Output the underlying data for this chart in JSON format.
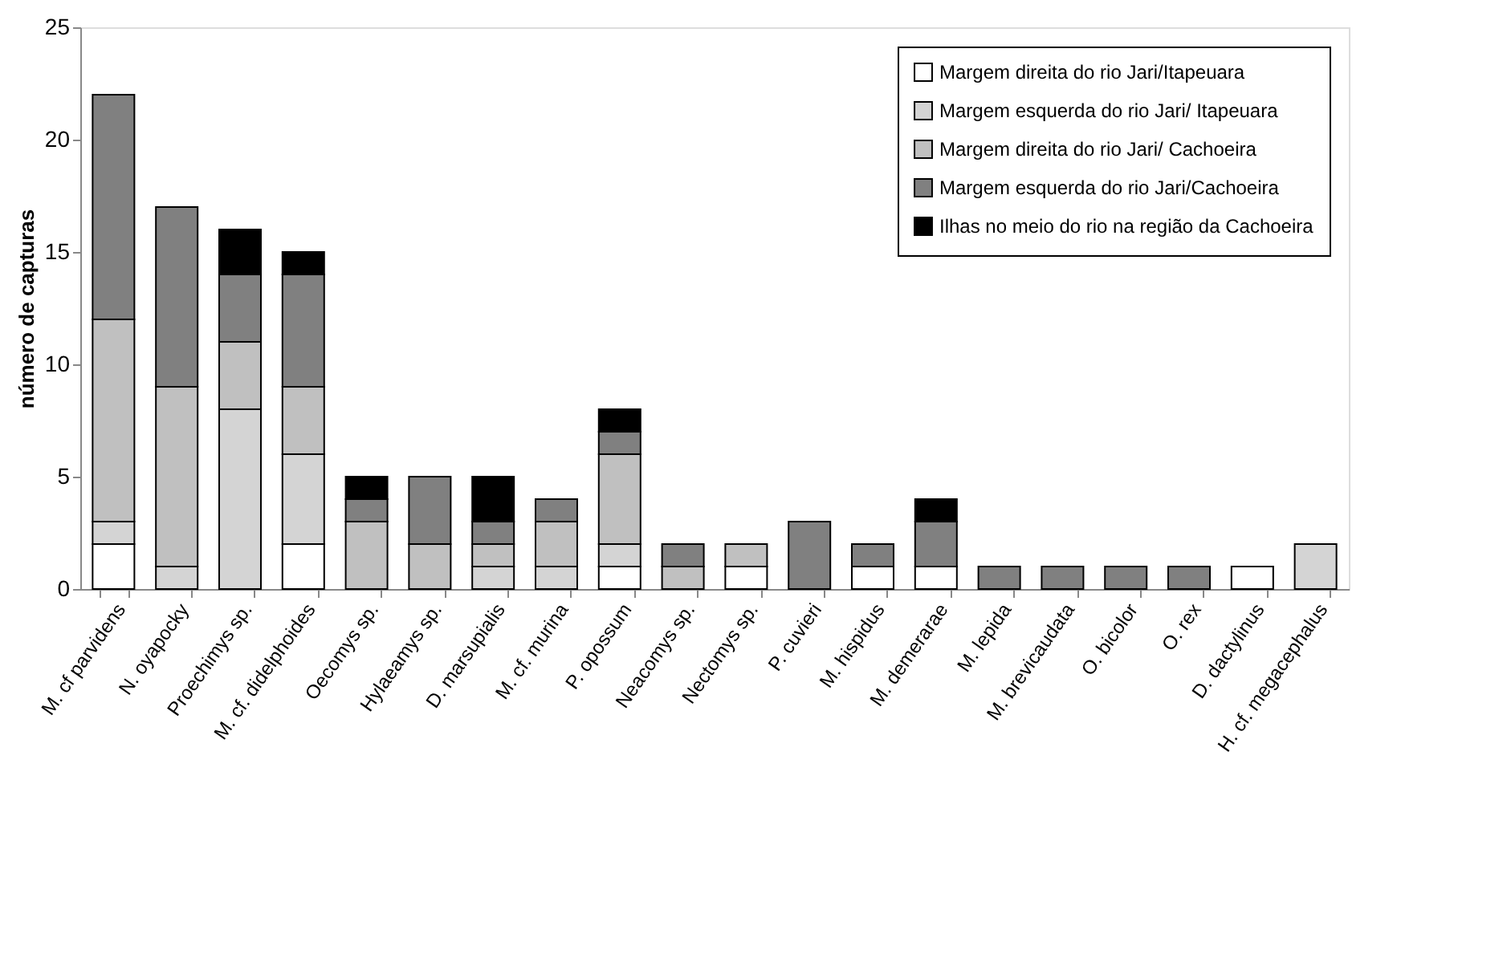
{
  "chart_data": {
    "type": "bar",
    "stacked": true,
    "ylabel": "número de capturas",
    "categories": [
      "M. cf parvidens",
      "N. oyapocky",
      "Proechimys sp.",
      "M. cf. didelphoides",
      "Oecomys sp.",
      "Hylaeamys sp.",
      "D. marsupialis",
      "M. cf. murina",
      "P. opossum",
      "Neacomys sp.",
      "Nectomys sp.",
      "P. cuvieri",
      "M. hispidus",
      "M. demerarae",
      "M. lepida",
      "M. brevicaudata",
      "O. bicolor",
      "O. rex",
      "D. dactylinus",
      "H. cf. megacephalus"
    ],
    "series": [
      {
        "name": "Margem direita do rio Jari/Itapeuara",
        "color": "#ffffff",
        "values": [
          2,
          0,
          0,
          2,
          0,
          0,
          0,
          0,
          1,
          0,
          1,
          0,
          1,
          1,
          0,
          0,
          0,
          0,
          1,
          0
        ]
      },
      {
        "name": "Margem esquerda do rio Jari/ Itapeuara",
        "color": "#d4d4d4",
        "values": [
          1,
          1,
          8,
          4,
          0,
          0,
          1,
          1,
          1,
          0,
          0,
          0,
          0,
          0,
          0,
          0,
          0,
          0,
          0,
          2
        ]
      },
      {
        "name": "Margem direita do rio Jari/ Cachoeira",
        "color": "#c0c0c0",
        "values": [
          9,
          8,
          3,
          3,
          3,
          2,
          1,
          2,
          4,
          1,
          1,
          0,
          0,
          0,
          0,
          0,
          0,
          0,
          0,
          0
        ]
      },
      {
        "name": "Margem esquerda do rio Jari/Cachoeira",
        "color": "#808080",
        "values": [
          10,
          8,
          3,
          5,
          1,
          3,
          1,
          1,
          1,
          1,
          0,
          3,
          1,
          2,
          1,
          1,
          1,
          1,
          0,
          0
        ]
      },
      {
        "name": "Ilhas no meio do rio na região da Cachoeira",
        "color": "#000000",
        "values": [
          0,
          0,
          2,
          1,
          1,
          0,
          2,
          0,
          1,
          0,
          0,
          0,
          0,
          1,
          0,
          0,
          0,
          0,
          0,
          0
        ]
      }
    ],
    "ylim": [
      0,
      25
    ],
    "yticks": [
      0,
      5,
      10,
      15,
      20,
      25
    ],
    "grid": false,
    "legend": "top right"
  }
}
